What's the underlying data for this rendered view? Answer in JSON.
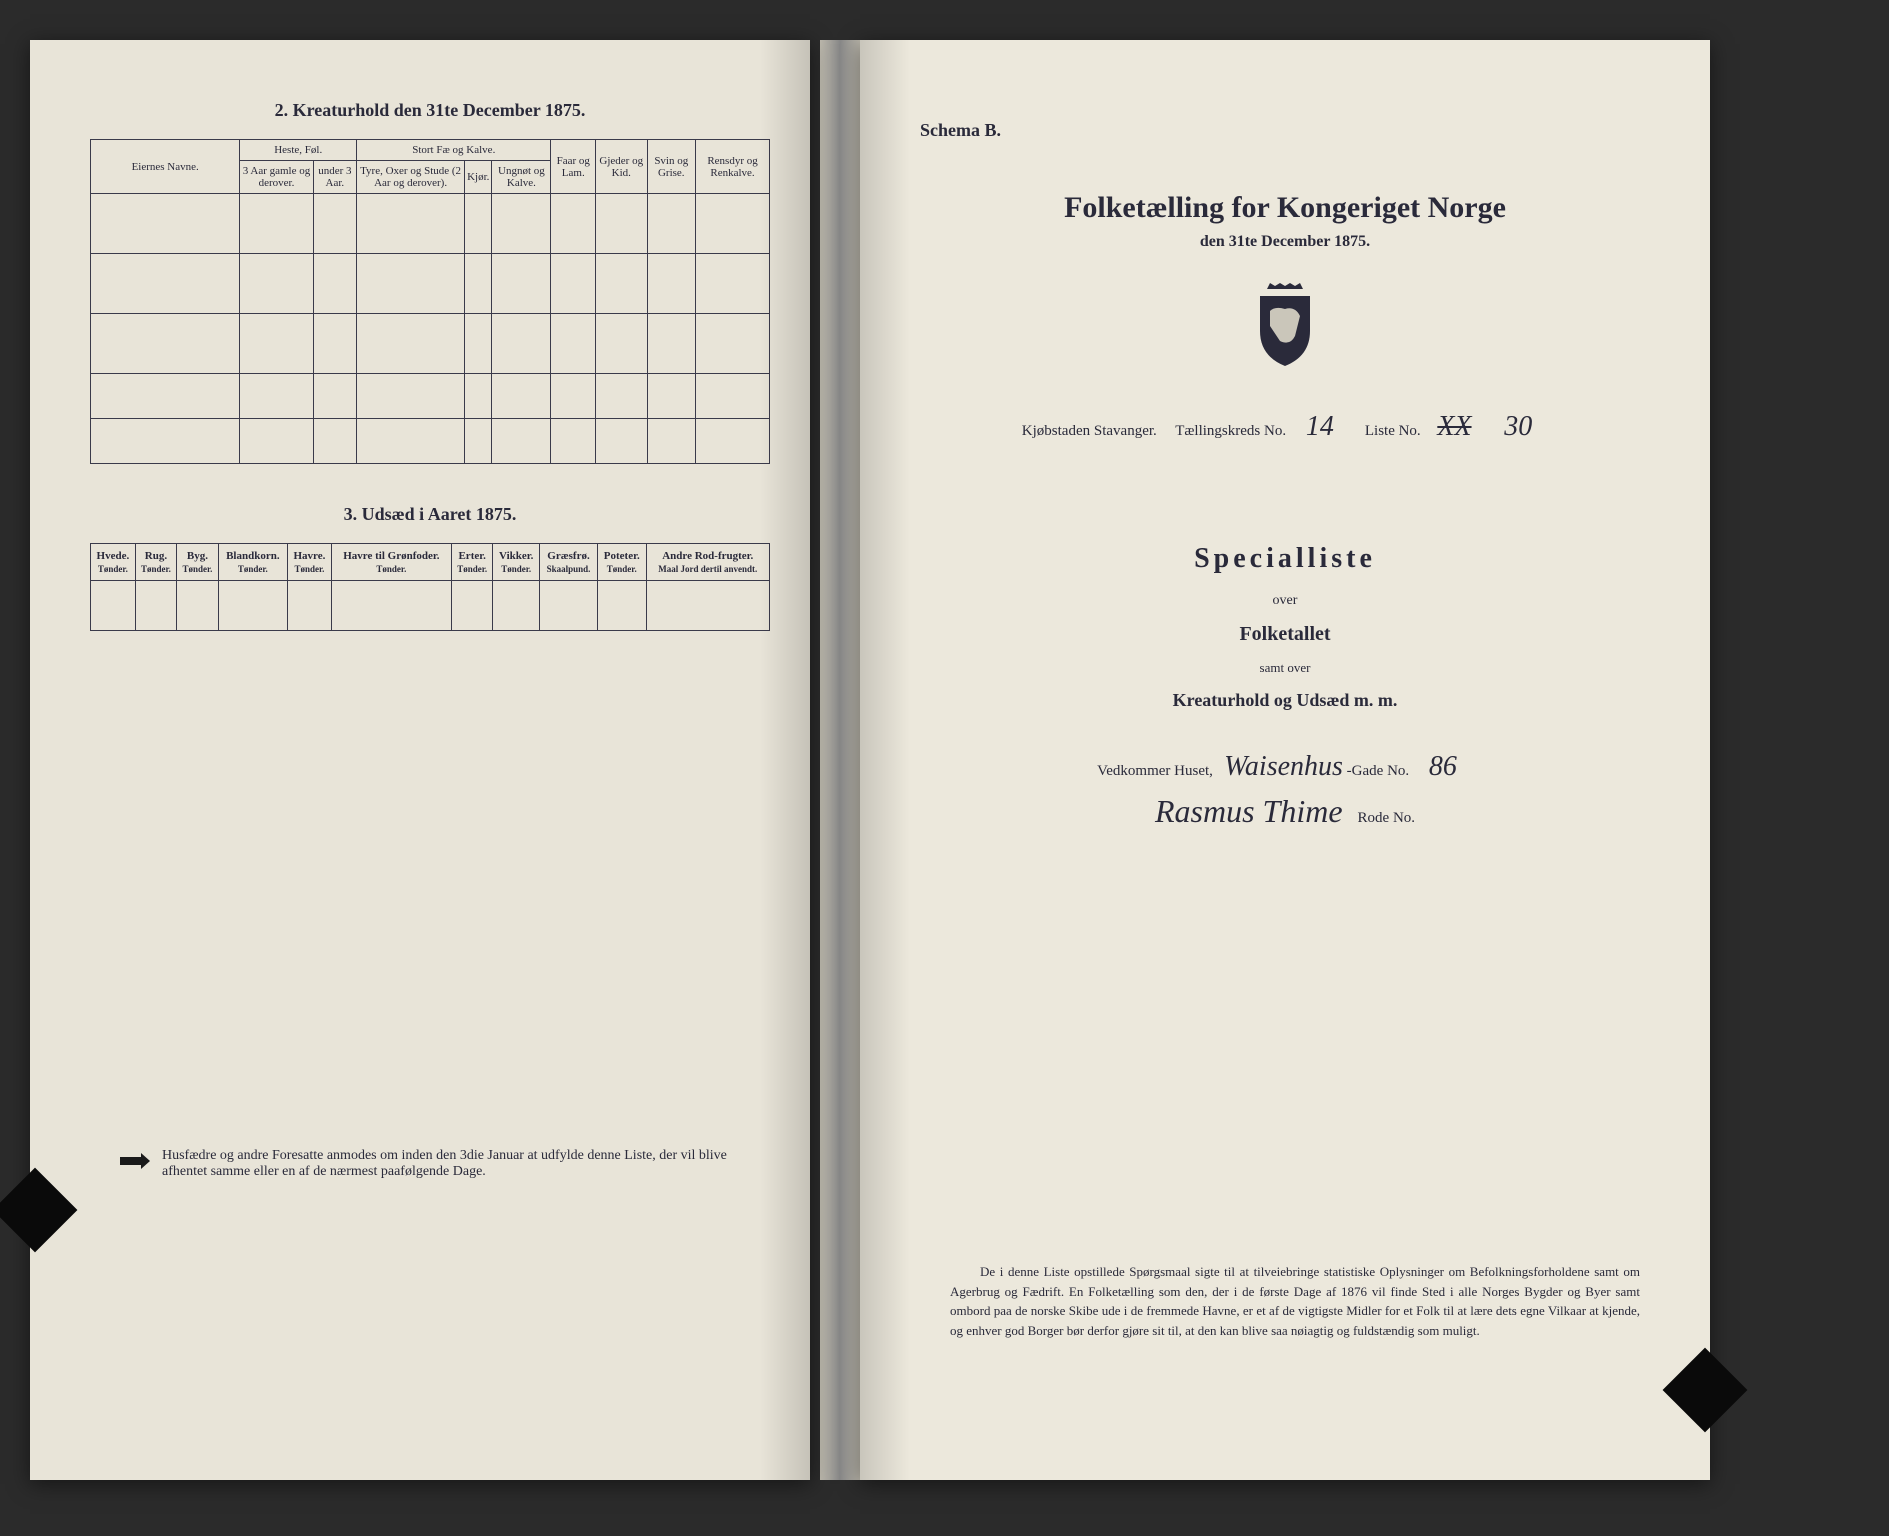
{
  "left": {
    "section2_title": "2.  Kreaturhold den 31te December 1875.",
    "table2": {
      "col_owner": "Eiernes Navne.",
      "grp_horse": "Heste, Føl.",
      "grp_cattle": "Stort Fæ og Kalve.",
      "col_sheep": "Faar og Lam.",
      "col_goat": "Gjeder og Kid.",
      "col_pig": "Svin og Grise.",
      "col_reindeer": "Rensdyr og Renkalve.",
      "sub_h1": "3 Aar gamle og derover.",
      "sub_h2": "under 3 Aar.",
      "sub_c1": "Tyre, Oxer og Stude (2 Aar og derover).",
      "sub_c2": "Kjør.",
      "sub_c3": "Ungnøt og Kalve."
    },
    "section3_title": "3.  Udsæd i Aaret 1875.",
    "table3": {
      "cols": [
        {
          "h": "Hvede.",
          "s": "Tønder."
        },
        {
          "h": "Rug.",
          "s": "Tønder."
        },
        {
          "h": "Byg.",
          "s": "Tønder."
        },
        {
          "h": "Blandkorn.",
          "s": "Tønder."
        },
        {
          "h": "Havre.",
          "s": "Tønder."
        },
        {
          "h": "Havre til Grønfoder.",
          "s": "Tønder."
        },
        {
          "h": "Erter.",
          "s": "Tønder."
        },
        {
          "h": "Vikker.",
          "s": "Tønder."
        },
        {
          "h": "Græsfrø.",
          "s": "Skaalpund."
        },
        {
          "h": "Poteter.",
          "s": "Tønder."
        },
        {
          "h": "Andre Rod-frugter.",
          "s": "Maal Jord dertil anvendt."
        }
      ]
    },
    "footnote": "Husfædre og andre Foresatte anmodes om inden den 3die Januar at udfylde denne Liste, der vil blive afhentet samme eller en af de nærmest paafølgende Dage."
  },
  "right": {
    "schema": "Schema B.",
    "main_title": "Folketælling for Kongeriget Norge",
    "sub_title": "den 31te December 1875.",
    "info": {
      "city_lbl": "Kjøbstaden Stavanger.",
      "kreds_lbl": "Tællingskreds No.",
      "kreds_val": "14",
      "liste_lbl": "Liste No.",
      "liste_val": "30",
      "liste_struck": "XX"
    },
    "spec": {
      "title": "Specialliste",
      "over1": "over",
      "line2": "Folketallet",
      "over2": "samt over",
      "line3": "Kreaturhold og Udsæd m. m."
    },
    "house": {
      "lbl": "Vedkommer Huset,",
      "street_hw": "Waisenhus",
      "gade_lbl": "-Gade No.",
      "gade_hw": "86",
      "name_hw": "Rasmus Thime",
      "rode_lbl": "Rode No."
    },
    "bottom": "De i denne Liste opstillede Spørgsmaal sigte til at tilveiebringe statistiske Oplysninger om Befolkningsforholdene samt om Agerbrug og Fædrift.  En Folketælling som den, der i de første Dage af 1876 vil finde Sted i alle Norges Bygder og Byer samt ombord paa de norske Skibe ude i de fremmede Havne, er et af de vigtigste Midler for et Folk til at lære dets egne Vilkaar at kjende, og enhver god Borger bør derfor gjøre sit til, at den kan blive saa nøiagtig og fuldstændig som muligt."
  },
  "colors": {
    "ink": "#2a2a3a",
    "paper_l": "#e8e4d8",
    "paper_r": "#ece8dc",
    "bg": "#2b2b2b"
  }
}
